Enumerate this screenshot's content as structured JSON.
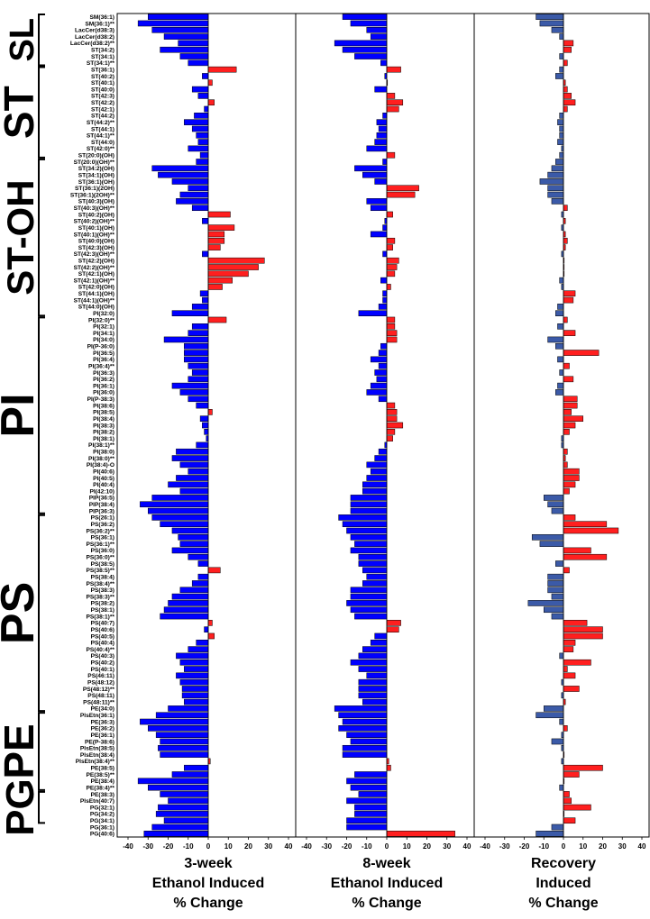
{
  "chart_data": {
    "type": "bar",
    "orientation": "horizontal",
    "groups": [
      {
        "name": "SL",
        "count": 8
      },
      {
        "name": "ST",
        "count": 14
      },
      {
        "name": "ST-OH",
        "count": 24
      },
      {
        "name": "PI",
        "count": 30
      },
      {
        "name": "PS",
        "count": 30
      },
      {
        "name": "PE",
        "count": 12
      },
      {
        "name": "PG",
        "count": 5
      }
    ],
    "categories": [
      "SM(36:1)",
      "SM(36:1)**",
      "LacCer(d38:3)",
      "LacCer(d38:2)",
      "LacCer(d38:2)**",
      "ST(34:2)",
      "ST(34:1)",
      "ST(34:1)**",
      "ST(36:1)",
      "ST(40:2)",
      "ST(40:1)",
      "ST(40:0)",
      "ST(42:3)",
      "ST(42:2)",
      "ST(42:1)",
      "ST(44:2)",
      "ST(44:2)**",
      "ST(44:1)",
      "ST(44:1)**",
      "ST(44:0)",
      "ST(42:0)**",
      "ST(20:0)(OH)",
      "ST(20:0)(OH)**",
      "ST(34:2)(OH)",
      "ST(34:1)(OH)",
      "ST(36:1)(OH)",
      "ST(36:1)(2OH)",
      "ST(36:1)(2OH)**",
      "ST(40:3)(OH)",
      "ST(40:3)(OH)**",
      "ST(40:2)(OH)",
      "ST(40:2)(OH)**",
      "ST(40:1)(OH)",
      "ST(40:1)(OH)**",
      "ST(40:0)(OH)",
      "ST(42:3)(OH)",
      "ST(42:3)(OH)**",
      "ST(42:2)(OH)",
      "ST(42:2)(OH)**",
      "ST(42:1)(OH)",
      "ST(42:1)(OH)**",
      "ST(42:0)(OH)",
      "ST(44:1)(OH)",
      "ST(44:1)(OH)**",
      "ST(44:0)(OH)",
      "PI(32:0)",
      "PI(32:0)**",
      "PI(32:1)",
      "PI(34:1)",
      "PI(34:0)",
      "PI(P-36:0)",
      "PI(36:5)",
      "PI(36:4)",
      "PI(36:4)**",
      "PI(36:3)",
      "PI(36:2)",
      "PI(36:1)",
      "PI(36:0)",
      "PI(P-38:3)",
      "PI(38:6)",
      "PI(38:5)",
      "PI(38:4)",
      "PI(38:3)",
      "PI(38:2)",
      "PI(38:1)",
      "PI(38:1)**",
      "PI(38:0)",
      "PI(38:0)**",
      "PI(38:4)-O",
      "PI(40:6)",
      "PI(40:5)",
      "PI(40:4)",
      "PI(42:10)",
      "PIP(36:5)",
      "PIP(38:4)",
      "PIP(36:3)",
      "PS(26:1)",
      "PS(36:2)",
      "PS(36:2)**",
      "PS(36:1)",
      "PS(36:1)**",
      "PS(36:0)",
      "PS(36:0)**",
      "PS(38:5)",
      "PS(38:5)**",
      "PS(38:4)",
      "PS(38:4)**",
      "PS(38:3)",
      "PS(38:3)**",
      "PS(38:2)",
      "PS(38:1)",
      "PS(38:1)**",
      "PS(40:7)",
      "PS(40:6)",
      "PS(40:5)",
      "PS(40:4)",
      "PS(40:4)**",
      "PS(40:3)",
      "PS(40:2)",
      "PS(40:1)",
      "PS(46:11)",
      "PS(48:12)",
      "PS(48:12)**",
      "PS(48:11)",
      "PS(48:11)**",
      "PE(34:0)",
      "PlsEtn(36:1)",
      "PE(36:3)",
      "PE(36:2)",
      "PE(36:1)",
      "PE(P-38:6)",
      "PlsEtn(38:5)",
      "PlsEtn(38:4)",
      "PlsEtn(38:4)**",
      "PE(38:5)",
      "PE(38:5)**",
      "PE(38:4)",
      "PE(38:4)**",
      "PE(38:3)",
      "PlsEtn(40:7)",
      "PG(32:1)",
      "PG(34:2)",
      "PG(34:1)"
    ],
    "last_categories": [
      "PG(36:1)",
      "PG(40:6)"
    ],
    "series": [
      {
        "name": "3-week Ethanol Induced % Change",
        "values": [
          -30,
          -35,
          -28,
          -22,
          -15,
          -24,
          -14,
          -10,
          14,
          -3,
          2,
          -8,
          -5,
          3,
          -2,
          -7,
          -12,
          -8,
          -6,
          -5,
          -10,
          -4,
          -6,
          -28,
          -25,
          -18,
          -10,
          -14,
          -16,
          -8,
          11,
          -3,
          13,
          8,
          8,
          6,
          -3,
          28,
          25,
          20,
          12,
          7,
          -4,
          -3,
          -8,
          -18,
          9,
          -8,
          -10,
          -22,
          -12,
          -12,
          -12,
          -10,
          -8,
          -10,
          -18,
          -14,
          -10,
          -6,
          2,
          -4,
          -3,
          -2,
          -1,
          -6,
          -16,
          -18,
          -14,
          -10,
          -16,
          -20,
          -14,
          -28,
          -34,
          -30,
          -28,
          -24,
          -18,
          -15,
          -14,
          -18,
          -10,
          -5,
          6,
          -5,
          -8,
          -14,
          -18,
          -20,
          -22,
          -24,
          2,
          -2,
          3,
          -6,
          -10,
          -16,
          -14,
          -12,
          -16,
          -14,
          -13,
          -13,
          -12,
          -20,
          -26,
          -34,
          -30,
          -26,
          -24,
          -25,
          -24,
          1,
          -12,
          -18,
          -35,
          -30,
          -24,
          -20,
          -25,
          -26,
          -22
        ]
      },
      {
        "name": "8-week Ethanol Induced % Change",
        "values": [
          -22,
          -18,
          -10,
          -8,
          -26,
          -22,
          -16,
          -3,
          7,
          -1,
          0,
          -6,
          4,
          8,
          6,
          -2,
          -5,
          -4,
          -5,
          -6,
          -10,
          4,
          -2,
          -16,
          -12,
          -6,
          16,
          14,
          -10,
          -8,
          3,
          -1,
          -2,
          -8,
          4,
          3,
          -2,
          6,
          5,
          4,
          -3,
          2,
          -2,
          -2,
          -4,
          -14,
          4,
          4,
          5,
          5,
          -3,
          -4,
          -8,
          -4,
          -6,
          -5,
          -8,
          -10,
          -4,
          4,
          5,
          5,
          8,
          4,
          3,
          -1,
          -4,
          -6,
          -10,
          -8,
          -10,
          -12,
          -12,
          -18,
          -18,
          -18,
          -24,
          -22,
          -20,
          -18,
          -16,
          -18,
          -14,
          -14,
          -12,
          -10,
          -12,
          -18,
          -18,
          -20,
          -18,
          -16,
          7,
          6,
          -6,
          -8,
          -12,
          -14,
          -18,
          -14,
          -10,
          -14,
          -14,
          -14,
          -12,
          -26,
          -24,
          -22,
          -24,
          -20,
          -18,
          -22,
          -22,
          1,
          2,
          -16,
          -20,
          -18,
          -14,
          -20,
          -16,
          -16,
          -20
        ]
      },
      {
        "name": "Recovery Induced % Change",
        "values": [
          -14,
          -12,
          -6,
          -2,
          5,
          4,
          -2,
          2,
          -2,
          -4,
          1,
          2,
          4,
          6,
          2,
          -2,
          -3,
          -2,
          -2,
          -3,
          -1,
          -2,
          -4,
          -6,
          -8,
          -12,
          -8,
          -8,
          -6,
          2,
          -1,
          1,
          -1,
          1,
          2,
          1,
          -1,
          0,
          0,
          0,
          -2,
          -1,
          6,
          5,
          -3,
          -4,
          2,
          -3,
          6,
          -8,
          -4,
          18,
          -3,
          3,
          -2,
          5,
          -3,
          -4,
          7,
          7,
          4,
          10,
          6,
          3,
          -1,
          -1,
          2,
          1,
          2,
          8,
          8,
          6,
          3,
          -10,
          -8,
          -6,
          6,
          22,
          28,
          -16,
          -12,
          14,
          22,
          -4,
          3,
          -8,
          -8,
          -8,
          -6,
          -18,
          -10,
          -6,
          12,
          20,
          20,
          6,
          5,
          -2,
          14,
          2,
          6,
          -1,
          8,
          -1,
          1,
          -10,
          -14,
          -2,
          2,
          -1,
          -6,
          -1,
          0,
          -1,
          20,
          8,
          0,
          -2,
          3,
          4,
          14,
          0,
          6
        ]
      }
    ],
    "last_values": [
      [
        -28,
        -20,
        -6
      ],
      [
        -32,
        34,
        -14
      ]
    ],
    "xlim": [
      -40,
      40
    ],
    "xticks": [
      -40,
      -30,
      -20,
      -10,
      0,
      10,
      20,
      30,
      40
    ],
    "xlabels": [
      [
        "3-week",
        "Ethanol Induced",
        "% Change"
      ],
      [
        "8-week",
        "Ethanol Induced",
        "% Change"
      ],
      [
        "Recovery",
        "Induced",
        "% Change"
      ]
    ],
    "colors": {
      "neg1": "#0000ff",
      "neg2": "#0000ff",
      "neg3": "#3b5aa8",
      "pos": "#ff1f1f",
      "edge": "#000000"
    }
  }
}
